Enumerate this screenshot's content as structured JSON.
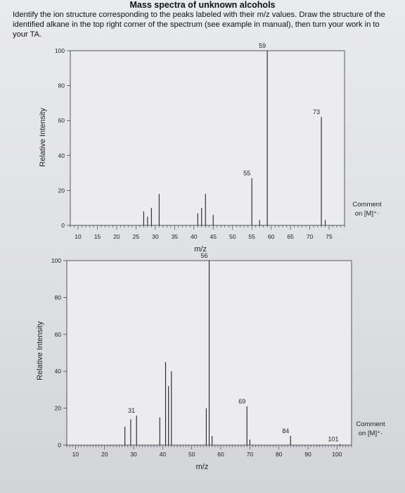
{
  "page": {
    "title": "Mass spectra of unknown alcohols",
    "instructions": "Identify the ion structure corresponding to the peaks labeled with their m/z values. Draw the structure of the identified alkane in the top right corner of the spectrum (see example in manual), then turn your work in to your TA."
  },
  "chart_data": [
    {
      "type": "bar",
      "title": "",
      "xlabel": "m/z",
      "ylabel": "Relative Intensity",
      "xlim": [
        8,
        79
      ],
      "ylim": [
        0,
        100
      ],
      "xticks": [
        10,
        15,
        20,
        25,
        30,
        35,
        40,
        45,
        50,
        55,
        60,
        65,
        70,
        75
      ],
      "yticks": [
        0,
        20,
        40,
        60,
        80,
        100
      ],
      "peaks": [
        {
          "x": 27,
          "y": 8
        },
        {
          "x": 28,
          "y": 5
        },
        {
          "x": 29,
          "y": 10
        },
        {
          "x": 31,
          "y": 18
        },
        {
          "x": 41,
          "y": 7
        },
        {
          "x": 42,
          "y": 10
        },
        {
          "x": 43,
          "y": 18
        },
        {
          "x": 45,
          "y": 6
        },
        {
          "x": 55,
          "y": 27,
          "label": "55"
        },
        {
          "x": 57,
          "y": 3
        },
        {
          "x": 59,
          "y": 100,
          "label": "59"
        },
        {
          "x": 73,
          "y": 62,
          "label": "73"
        },
        {
          "x": 74,
          "y": 3
        }
      ],
      "annotation": "Comment on [M]⁺·"
    },
    {
      "type": "bar",
      "title": "",
      "xlabel": "m/z",
      "ylabel": "Relative Intensity",
      "xlim": [
        7,
        105
      ],
      "ylim": [
        0,
        100
      ],
      "xticks": [
        10,
        20,
        30,
        40,
        50,
        60,
        70,
        80,
        90,
        100
      ],
      "yticks": [
        0,
        20,
        40,
        60,
        80,
        100
      ],
      "peaks": [
        {
          "x": 27,
          "y": 10
        },
        {
          "x": 29,
          "y": 14
        },
        {
          "x": 31,
          "y": 16,
          "label": "31"
        },
        {
          "x": 39,
          "y": 15
        },
        {
          "x": 41,
          "y": 45
        },
        {
          "x": 42,
          "y": 32
        },
        {
          "x": 43,
          "y": 40
        },
        {
          "x": 55,
          "y": 20
        },
        {
          "x": 56,
          "y": 100,
          "label": "56"
        },
        {
          "x": 57,
          "y": 5
        },
        {
          "x": 69,
          "y": 21,
          "label": "69"
        },
        {
          "x": 70,
          "y": 3
        },
        {
          "x": 84,
          "y": 5,
          "label": "84"
        },
        {
          "x": 101,
          "y": 0.5,
          "label": "101"
        }
      ],
      "annotation": "Comment on [M]⁺·"
    }
  ]
}
